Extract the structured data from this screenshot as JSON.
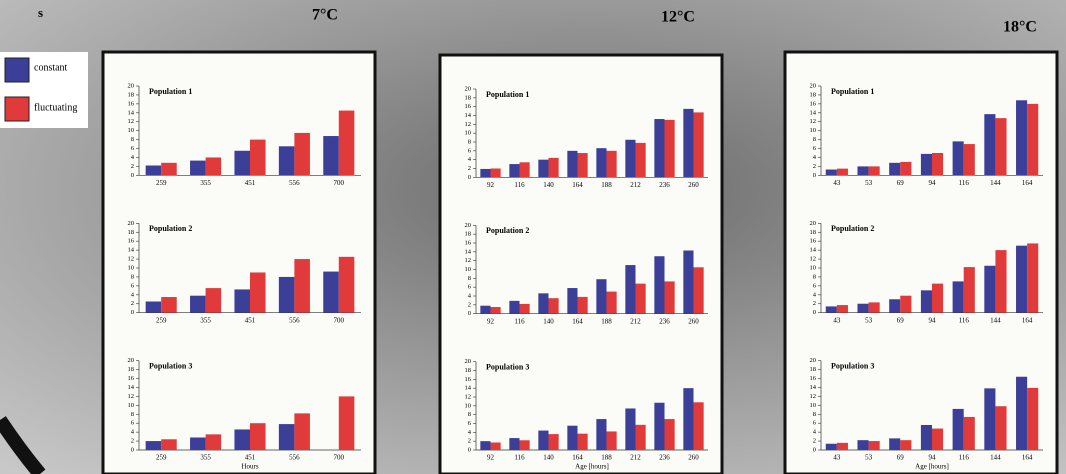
{
  "slide": {
    "corner_text": "s",
    "panel_titles": [
      "7°C",
      "12°C",
      "18°C"
    ]
  },
  "chart_data": [
    {
      "type": "bar",
      "title": "Population 1",
      "categories": [
        "259",
        "355",
        "451",
        "556",
        "700"
      ],
      "ylim": [
        0,
        20
      ],
      "yticks": [
        0,
        2,
        4,
        6,
        8,
        10,
        12,
        14,
        16,
        18,
        20
      ],
      "series": [
        {
          "name": "constant",
          "color": "#3b3f98",
          "values": [
            2.2,
            3.3,
            5.5,
            6.5,
            8.8
          ]
        },
        {
          "name": "fluctuating",
          "color": "#e03a3a",
          "values": [
            2.8,
            4,
            8,
            9.5,
            14.5
          ]
        }
      ]
    },
    {
      "type": "bar",
      "title": "Population 2",
      "categories": [
        "259",
        "355",
        "451",
        "556",
        "700"
      ],
      "ylim": [
        0,
        20
      ],
      "yticks": [
        0,
        2,
        4,
        6,
        8,
        10,
        12,
        14,
        16,
        18,
        20
      ],
      "series": [
        {
          "name": "constant",
          "color": "#3b3f98",
          "values": [
            2.5,
            3.8,
            5.2,
            8,
            9.2
          ]
        },
        {
          "name": "fluctuating",
          "color": "#e03a3a",
          "values": [
            3.5,
            5.5,
            9,
            12,
            12.5
          ]
        }
      ]
    },
    {
      "type": "bar",
      "title": "Population 3",
      "x_label": "Hours",
      "categories": [
        "259",
        "355",
        "451",
        "556",
        "700"
      ],
      "ylim": [
        0,
        20
      ],
      "yticks": [
        0,
        2,
        4,
        6,
        8,
        10,
        12,
        14,
        16,
        18,
        20
      ],
      "series": [
        {
          "name": "constant",
          "color": "#3b3f98",
          "values": [
            2,
            2.8,
            4.6,
            5.8,
            null
          ]
        },
        {
          "name": "fluctuating",
          "color": "#e03a3a",
          "values": [
            2.4,
            3.5,
            6,
            8.2,
            12
          ]
        }
      ]
    },
    {
      "type": "bar",
      "title": "Population 1",
      "categories": [
        "92",
        "116",
        "140",
        "164",
        "188",
        "212",
        "236",
        "260"
      ],
      "ylim": [
        0,
        20
      ],
      "yticks": [
        0,
        2,
        4,
        6,
        8,
        10,
        12,
        14,
        16,
        18,
        20
      ],
      "series": [
        {
          "name": "constant",
          "color": "#3b3f98",
          "values": [
            1.9,
            3,
            4,
            6,
            6.6,
            8.5,
            13.2,
            15.5
          ]
        },
        {
          "name": "fluctuating",
          "color": "#e03a3a",
          "values": [
            2,
            3.4,
            4.4,
            5.5,
            6,
            7.8,
            13,
            14.7
          ]
        }
      ]
    },
    {
      "type": "bar",
      "title": "Population 2",
      "categories": [
        "92",
        "116",
        "140",
        "164",
        "188",
        "212",
        "236",
        "260"
      ],
      "ylim": [
        0,
        20
      ],
      "yticks": [
        0,
        2,
        4,
        6,
        8,
        10,
        12,
        14,
        16,
        18,
        20
      ],
      "series": [
        {
          "name": "constant",
          "color": "#3b3f98",
          "values": [
            1.8,
            2.9,
            4.6,
            5.8,
            7.8,
            11,
            13,
            14.3
          ]
        },
        {
          "name": "fluctuating",
          "color": "#e03a3a",
          "values": [
            1.5,
            2.2,
            3.5,
            3.8,
            5,
            6.8,
            7.3,
            10.5
          ]
        }
      ]
    },
    {
      "type": "bar",
      "title": "Population 3",
      "x_label": "Age [hours]",
      "categories": [
        "92",
        "116",
        "140",
        "164",
        "188",
        "212",
        "236",
        "260"
      ],
      "ylim": [
        0,
        20
      ],
      "yticks": [
        0,
        2,
        4,
        6,
        8,
        10,
        12,
        14,
        16,
        18,
        20
      ],
      "series": [
        {
          "name": "constant",
          "color": "#3b3f98",
          "values": [
            2,
            2.7,
            4.4,
            5.5,
            7,
            9.4,
            10.7,
            14
          ]
        },
        {
          "name": "fluctuating",
          "color": "#e03a3a",
          "values": [
            1.7,
            2.2,
            3.6,
            3.7,
            4.2,
            5.7,
            7,
            10.8
          ]
        }
      ]
    },
    {
      "type": "bar",
      "title": "Population 1",
      "categories": [
        "43",
        "53",
        "69",
        "94",
        "116",
        "144",
        "164"
      ],
      "ylim": [
        0,
        20
      ],
      "yticks": [
        0,
        2,
        4,
        6,
        8,
        10,
        12,
        14,
        16,
        18,
        20
      ],
      "series": [
        {
          "name": "constant",
          "color": "#3b3f98",
          "values": [
            1.3,
            2,
            2.8,
            4.8,
            7.6,
            13.7,
            16.8
          ]
        },
        {
          "name": "fluctuating",
          "color": "#e03a3a",
          "values": [
            1.5,
            2,
            3,
            5,
            7,
            12.8,
            16
          ]
        }
      ]
    },
    {
      "type": "bar",
      "title": "Population 2",
      "categories": [
        "43",
        "53",
        "69",
        "94",
        "116",
        "144",
        "164"
      ],
      "ylim": [
        0,
        20
      ],
      "yticks": [
        0,
        2,
        4,
        6,
        8,
        10,
        12,
        14,
        16,
        18,
        20
      ],
      "series": [
        {
          "name": "constant",
          "color": "#3b3f98",
          "values": [
            1.4,
            2,
            3,
            5,
            7,
            10.5,
            15
          ]
        },
        {
          "name": "fluctuating",
          "color": "#e03a3a",
          "values": [
            1.7,
            2.3,
            3.8,
            6.5,
            10.2,
            14,
            15.5
          ]
        }
      ]
    },
    {
      "type": "bar",
      "title": "Population 3",
      "x_label": "Age [hours]",
      "categories": [
        "43",
        "53",
        "69",
        "94",
        "116",
        "144",
        "164"
      ],
      "ylim": [
        0,
        20
      ],
      "yticks": [
        0,
        2,
        4,
        6,
        8,
        10,
        12,
        14,
        16,
        18,
        20
      ],
      "series": [
        {
          "name": "constant",
          "color": "#3b3f98",
          "values": [
            1.4,
            2.2,
            2.6,
            5.6,
            9.2,
            13.8,
            16.4
          ]
        },
        {
          "name": "fluctuating",
          "color": "#e03a3a",
          "values": [
            1.6,
            2,
            2.2,
            4.8,
            7.4,
            9.8,
            13.9
          ]
        }
      ]
    }
  ]
}
